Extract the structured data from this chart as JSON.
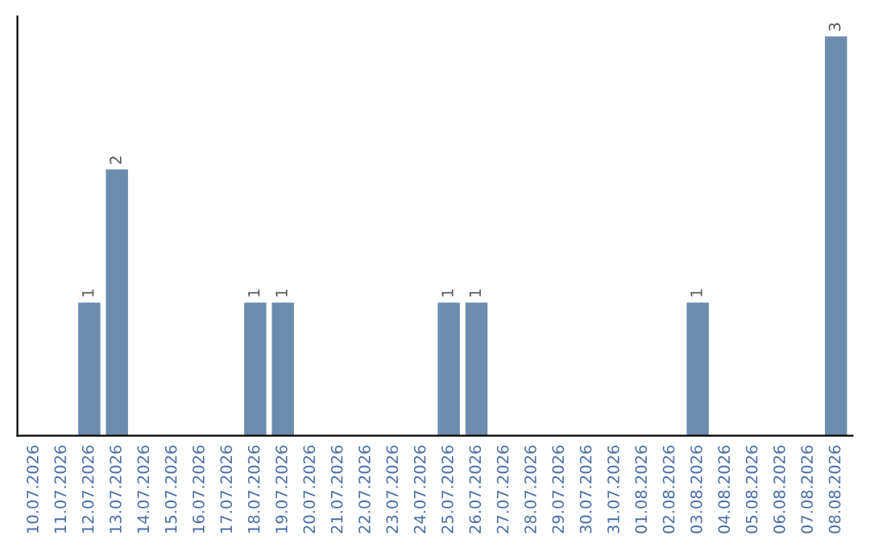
{
  "chart_data": {
    "type": "bar",
    "categories": [
      "10.07.2026",
      "11.07.2026",
      "12.07.2026",
      "13.07.2026",
      "14.07.2026",
      "15.07.2026",
      "16.07.2026",
      "17.07.2026",
      "18.07.2026",
      "19.07.2026",
      "20.07.2026",
      "21.07.2026",
      "22.07.2026",
      "23.07.2026",
      "24.07.2026",
      "25.07.2026",
      "26.07.2026",
      "27.07.2026",
      "28.07.2026",
      "29.07.2026",
      "30.07.2026",
      "31.07.2026",
      "01.08.2026",
      "02.08.2026",
      "03.08.2026",
      "04.08.2026",
      "05.08.2026",
      "06.08.2026",
      "07.08.2026",
      "08.08.2026"
    ],
    "values": [
      0,
      0,
      1,
      2,
      0,
      0,
      0,
      0,
      1,
      1,
      0,
      0,
      0,
      0,
      0,
      1,
      1,
      0,
      0,
      0,
      0,
      0,
      0,
      0,
      1,
      0,
      0,
      0,
      0,
      3
    ],
    "value_labels": [
      null,
      null,
      "1",
      "2",
      null,
      null,
      null,
      null,
      "1",
      "1",
      null,
      null,
      null,
      null,
      null,
      "1",
      "1",
      null,
      null,
      null,
      null,
      null,
      null,
      null,
      "1",
      null,
      null,
      null,
      null,
      "3"
    ],
    "color": "#6b8cad",
    "tick_labels": "x"
  }
}
